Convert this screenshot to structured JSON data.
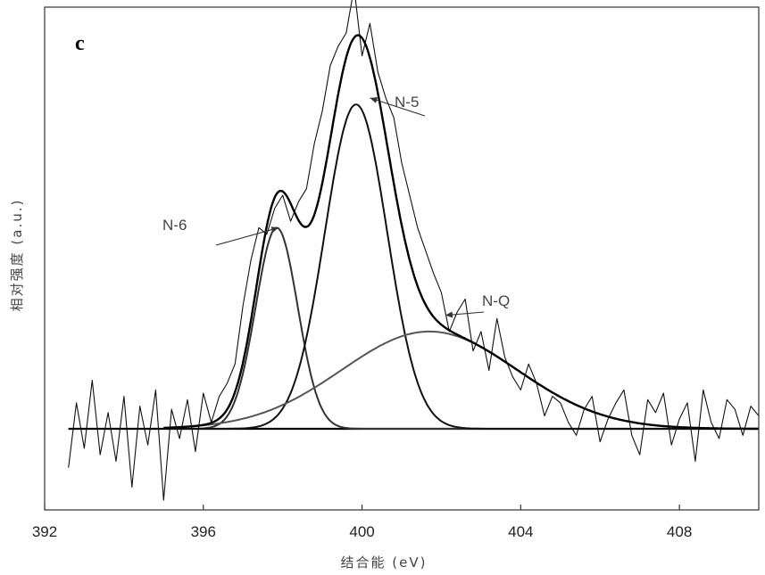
{
  "chart_data": {
    "type": "line",
    "panel_label": "c",
    "xlabel": "结合能 (eV)",
    "ylabel": "相对强度 (a.u.)",
    "xlim": [
      392,
      410
    ],
    "x_ticks": [
      392,
      396,
      400,
      404,
      408
    ],
    "ylim": [
      -0.25,
      1.3
    ],
    "baseline": 0,
    "raw_data": {
      "name": "",
      "x": [
        392.6,
        392.8,
        393.0,
        393.2,
        393.4,
        393.6,
        393.8,
        394.0,
        394.2,
        394.4,
        394.6,
        394.8,
        395.0,
        395.2,
        395.4,
        395.6,
        395.8,
        396.0,
        396.2,
        396.4,
        396.6,
        396.8,
        397.0,
        397.2,
        397.4,
        397.6,
        397.8,
        398.0,
        398.2,
        398.4,
        398.6,
        398.8,
        399.0,
        399.2,
        399.4,
        399.6,
        399.8,
        400.0,
        400.2,
        400.4,
        400.6,
        400.8,
        401.0,
        401.2,
        401.4,
        401.6,
        401.8,
        402.0,
        402.2,
        402.4,
        402.6,
        402.8,
        403.0,
        403.2,
        403.4,
        403.6,
        403.8,
        404.0,
        404.2,
        404.4,
        404.6,
        404.8,
        405.0,
        405.2,
        405.4,
        405.6,
        405.8,
        406.0,
        406.2,
        406.4,
        406.6,
        406.8,
        407.0,
        407.2,
        407.4,
        407.6,
        407.8,
        408.0,
        408.2,
        408.4,
        408.6,
        408.8,
        409.0,
        409.2,
        409.4,
        409.6,
        409.8,
        410.0
      ],
      "y": [
        -0.12,
        0.08,
        -0.06,
        0.15,
        -0.08,
        0.05,
        -0.1,
        0.1,
        -0.18,
        0.07,
        -0.05,
        0.12,
        -0.22,
        0.06,
        -0.03,
        0.09,
        -0.07,
        0.11,
        0.02,
        0.1,
        0.14,
        0.2,
        0.38,
        0.52,
        0.62,
        0.6,
        0.68,
        0.72,
        0.64,
        0.7,
        0.74,
        0.88,
        0.98,
        1.12,
        1.18,
        1.22,
        1.36,
        1.15,
        1.25,
        1.1,
        1.02,
        0.96,
        0.82,
        0.72,
        0.62,
        0.55,
        0.48,
        0.42,
        0.3,
        0.36,
        0.4,
        0.24,
        0.3,
        0.18,
        0.34,
        0.22,
        0.16,
        0.12,
        0.2,
        0.14,
        0.04,
        0.1,
        0.08,
        0.02,
        -0.02,
        0.06,
        0.1,
        -0.04,
        0.03,
        0.08,
        0.12,
        -0.02,
        -0.08,
        0.09,
        0.05,
        0.11,
        -0.05,
        0.03,
        0.08,
        -0.1,
        0.12,
        0.02,
        -0.03,
        0.09,
        0.06,
        -0.02,
        0.07,
        0.04
      ]
    },
    "components": [
      {
        "name": "N-6",
        "center": 397.85,
        "height": 0.62,
        "fwhm": 1.25,
        "color": "#333333"
      },
      {
        "name": "N-5",
        "center": 399.85,
        "height": 1.0,
        "fwhm": 1.85,
        "color": "#111111"
      },
      {
        "name": "N-Q",
        "center": 401.7,
        "height": 0.3,
        "fwhm": 5.2,
        "color": "#555555"
      }
    ],
    "envelope": {
      "name": "",
      "color": "#000000"
    },
    "annotations": [
      {
        "text": "N-6",
        "points_to_x": 397.9
      },
      {
        "text": "N-5",
        "points_to_x": 400.2
      },
      {
        "text": "N-Q",
        "points_to_x": 402.1
      }
    ],
    "grid": false,
    "legend": "none"
  }
}
